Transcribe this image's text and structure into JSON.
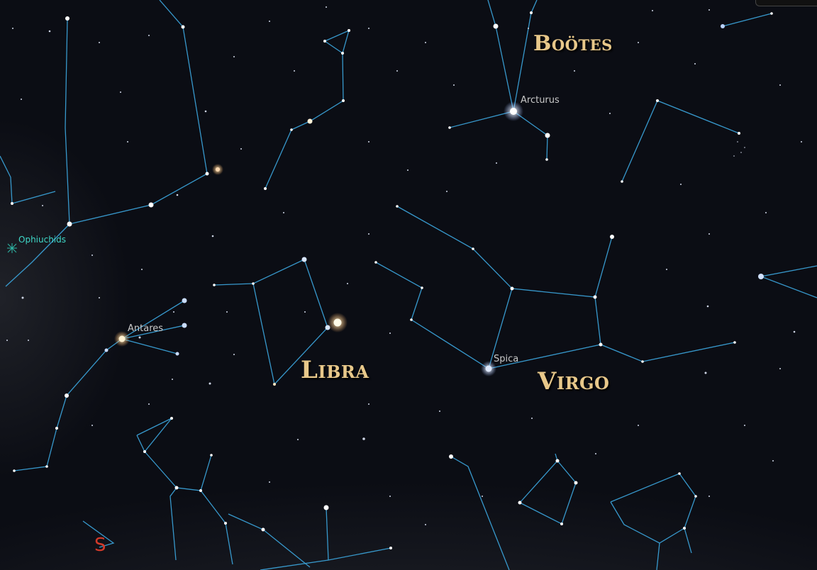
{
  "constellations": {
    "bootes": "Boötes",
    "libra": "Libra",
    "virgo": "Virgo"
  },
  "stars": {
    "arcturus": "Arcturus",
    "antares": "Antares",
    "spica": "Spica"
  },
  "meteor_shower": "Ophiuchids",
  "compass": {
    "south": "S"
  },
  "colors": {
    "sky": "#0b0d14",
    "constellation_lines": "#3aa0d6",
    "constellation_names": "#e8c88a",
    "compass": "#d23a2a",
    "meteor_label": "#3fd8c8"
  }
}
